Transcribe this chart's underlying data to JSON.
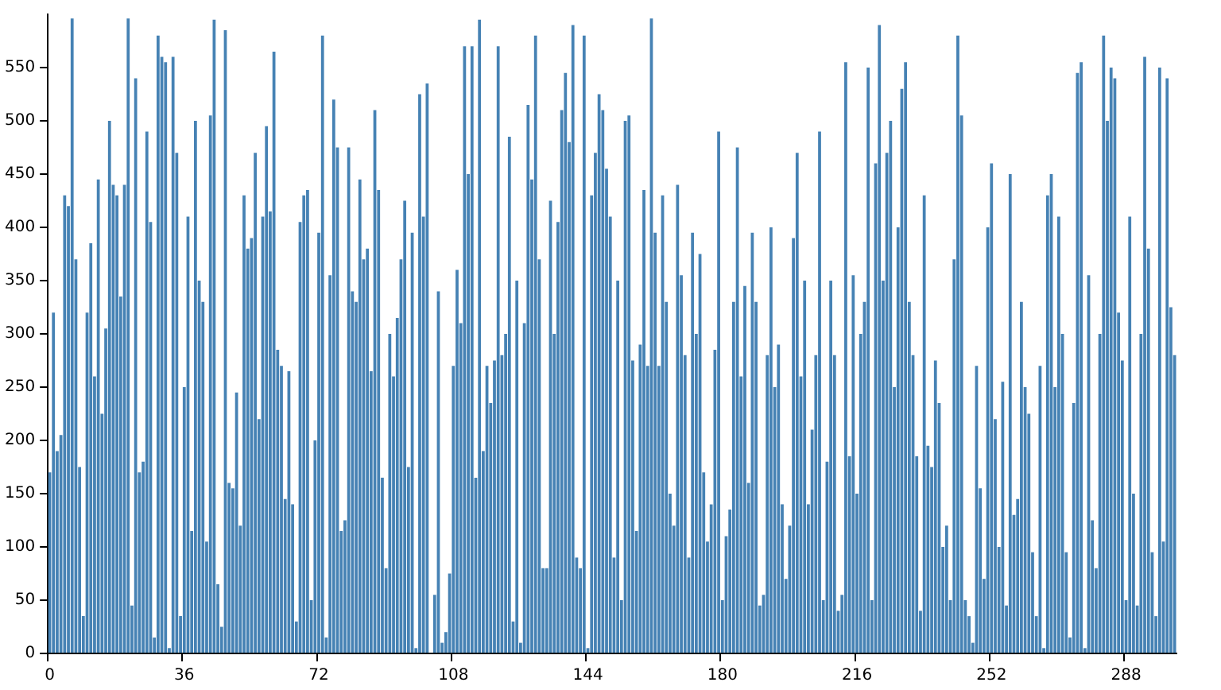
{
  "chart_data": {
    "type": "bar",
    "color": "#4682b4",
    "values": [
      170,
      320,
      190,
      205,
      430,
      420,
      596,
      370,
      175,
      35,
      320,
      385,
      260,
      445,
      225,
      305,
      500,
      440,
      430,
      335,
      440,
      596,
      45,
      540,
      170,
      180,
      490,
      405,
      15,
      580,
      560,
      555,
      5,
      560,
      470,
      35,
      250,
      410,
      115,
      500,
      350,
      330,
      105,
      505,
      595,
      65,
      25,
      585,
      160,
      155,
      245,
      120,
      430,
      380,
      390,
      470,
      220,
      410,
      495,
      415,
      565,
      285,
      270,
      145,
      265,
      140,
      30,
      405,
      430,
      435,
      50,
      200,
      395,
      580,
      15,
      355,
      520,
      475,
      115,
      125,
      475,
      340,
      330,
      445,
      370,
      380,
      265,
      510,
      435,
      165,
      80,
      300,
      260,
      315,
      370,
      425,
      175,
      395,
      5,
      525,
      410,
      535,
      0,
      55,
      340,
      10,
      20,
      75,
      270,
      360,
      310,
      570,
      450,
      570,
      165,
      595,
      190,
      270,
      235,
      275,
      570,
      280,
      300,
      485,
      30,
      350,
      10,
      310,
      515,
      445,
      580,
      370,
      80,
      80,
      425,
      300,
      405,
      510,
      545,
      480,
      590,
      90,
      80,
      580,
      5,
      430,
      470,
      525,
      510,
      455,
      410,
      90,
      350,
      50,
      500,
      505,
      275,
      115,
      290,
      435,
      270,
      596,
      395,
      270,
      430,
      330,
      150,
      120,
      440,
      355,
      280,
      90,
      395,
      300,
      375,
      170,
      105,
      140,
      285,
      490,
      50,
      110,
      135,
      330,
      475,
      260,
      345,
      160,
      395,
      330,
      45,
      55,
      280,
      400,
      250,
      290,
      140,
      70,
      120,
      390,
      470,
      260,
      350,
      140,
      210,
      280,
      490,
      50,
      180,
      350,
      280,
      40,
      55,
      555,
      185,
      355,
      150,
      300,
      330,
      550,
      50,
      460,
      590,
      350,
      470,
      500,
      250,
      400,
      530,
      555,
      330,
      280,
      185,
      40,
      430,
      195,
      175,
      275,
      235,
      100,
      120,
      50,
      370,
      580,
      505,
      50,
      35,
      10,
      270,
      155,
      70,
      400,
      460,
      220,
      100,
      255,
      45,
      450,
      130,
      145,
      330,
      250,
      225,
      95,
      35,
      270,
      5,
      430,
      450,
      250,
      410,
      300,
      95,
      15,
      235,
      545,
      555,
      5,
      355,
      125,
      80,
      300,
      580,
      500,
      550,
      540,
      320,
      275,
      50,
      410,
      150,
      45,
      300,
      560,
      380,
      95,
      35,
      550,
      105,
      540,
      325,
      280
    ],
    "ylim": [
      0,
      600
    ],
    "yticks": [
      0,
      50,
      100,
      150,
      200,
      250,
      300,
      350,
      400,
      450,
      500,
      550
    ],
    "categories": [
      "0",
      null,
      null,
      null,
      null,
      null,
      null,
      null,
      null,
      null,
      null,
      null,
      null,
      null,
      null,
      null,
      null,
      null,
      null,
      null,
      null,
      null,
      null,
      null,
      null,
      null,
      null,
      null,
      null,
      null,
      null,
      null,
      null,
      null,
      null,
      null,
      "36",
      null,
      null,
      null,
      null,
      null,
      null,
      null,
      null,
      null,
      null,
      null,
      null,
      null,
      null,
      null,
      null,
      null,
      null,
      null,
      null,
      null,
      null,
      null,
      null,
      null,
      null,
      null,
      null,
      null,
      null,
      null,
      null,
      null,
      null,
      null,
      "72",
      null,
      null,
      null,
      null,
      null,
      null,
      null,
      null,
      null,
      null,
      null,
      null,
      null,
      null,
      null,
      null,
      null,
      null,
      null,
      null,
      null,
      null,
      null,
      null,
      null,
      null,
      null,
      null,
      null,
      null,
      null,
      null,
      null,
      null,
      null,
      "108",
      null,
      null,
      null,
      null,
      null,
      null,
      null,
      null,
      null,
      null,
      null,
      null,
      null,
      null,
      null,
      null,
      null,
      null,
      null,
      null,
      null,
      null,
      null,
      null,
      null,
      null,
      null,
      null,
      null,
      null,
      null,
      null,
      null,
      null,
      null,
      "144",
      null,
      null,
      null,
      null,
      null,
      null,
      null,
      null,
      null,
      null,
      null,
      null,
      null,
      null,
      null,
      null,
      null,
      null,
      null,
      null,
      null,
      null,
      null,
      null,
      null,
      null,
      null,
      null,
      null,
      null,
      null,
      null,
      null,
      null,
      null,
      "180",
      null,
      null,
      null,
      null,
      null,
      null,
      null,
      null,
      null,
      null,
      null,
      null,
      null,
      null,
      null,
      null,
      null,
      null,
      null,
      null,
      null,
      null,
      null,
      null,
      null,
      null,
      null,
      null,
      null,
      null,
      null,
      null,
      null,
      null,
      null,
      "216",
      null,
      null,
      null,
      null,
      null,
      null,
      null,
      null,
      null,
      null,
      null,
      null,
      null,
      null,
      null,
      null,
      null,
      null,
      null,
      null,
      null,
      null,
      null,
      null,
      null,
      null,
      null,
      null,
      null,
      null,
      null,
      null,
      null,
      null,
      null,
      "252",
      null,
      null,
      null,
      null,
      null,
      null,
      null,
      null,
      null,
      null,
      null,
      null,
      null,
      null,
      null,
      null,
      null,
      null,
      null,
      null,
      null,
      null,
      null,
      null,
      null,
      null,
      null,
      null,
      null,
      null,
      null,
      null,
      null,
      null,
      null,
      "288",
      null,
      null,
      null,
      null,
      null,
      null,
      null,
      null,
      null,
      null,
      null,
      null,
      null
    ]
  }
}
